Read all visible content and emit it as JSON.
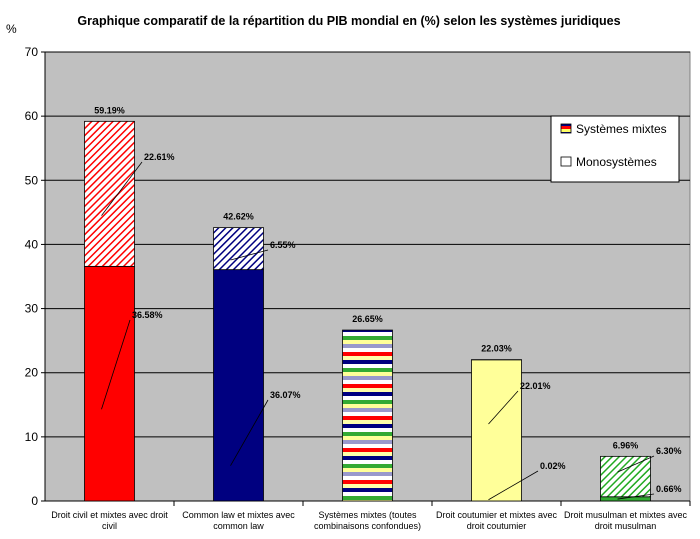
{
  "chart_data": {
    "type": "bar",
    "stacked": true,
    "title": "Graphique comparatif de la répartition du PIB mondial en (%) selon les  systèmes juridiques",
    "ylabel": "%",
    "xlabel": "",
    "ylim": [
      0,
      70
    ],
    "yticks": [
      0,
      10,
      20,
      30,
      40,
      50,
      60,
      70
    ],
    "grid": true,
    "legend_position": "top-right",
    "plot_background": "#c0c0c0",
    "categories": [
      [
        "Droit civil et mixtes avec droit",
        "civil"
      ],
      [
        "Common law et mixtes avec",
        "common law"
      ],
      [
        "Systèmes mixtes (toutes",
        "combinaisons confondues)"
      ],
      [
        "Droit coutumier et mixtes avec",
        "droit coutumier"
      ],
      [
        "Droit musulman et mixtes avec",
        "droit musulman"
      ]
    ],
    "bar_colors": [
      "#ff0000",
      "#000080",
      "#ffff99",
      "#ffff99",
      "#33aa33"
    ],
    "series": [
      {
        "name": "Monosystèmes",
        "values": [
          36.58,
          36.07,
          0,
          22.01,
          0.66
        ],
        "labels": [
          "36.58%",
          "36.07%",
          "",
          "22.01%",
          "0.66%"
        ]
      },
      {
        "name": "Systèmes mixtes",
        "values": [
          22.61,
          6.55,
          26.65,
          0.02,
          6.3
        ],
        "labels": [
          "22.61%",
          "6.55%",
          "",
          "0.02%",
          "6.30%"
        ]
      }
    ],
    "totals": [
      59.19,
      42.62,
      26.65,
      22.03,
      6.96
    ],
    "total_labels": [
      "59.19%",
      "42.62%",
      "26.65%",
      "22.03%",
      "6.96%"
    ]
  }
}
